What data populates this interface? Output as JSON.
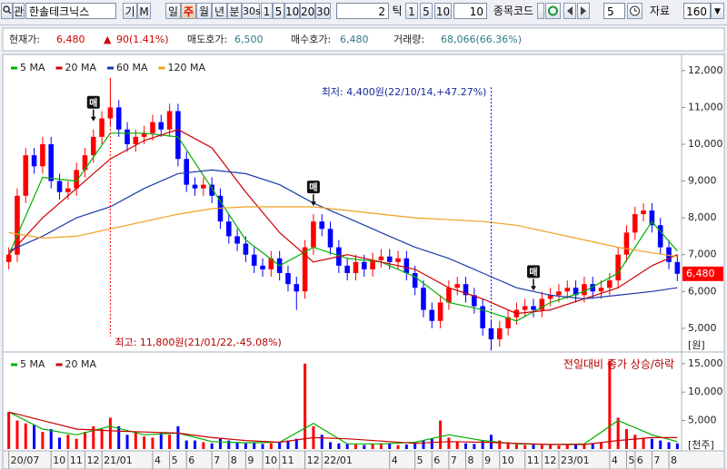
{
  "toolbar": {
    "watch": "관",
    "stock_name": "한솔테크닉스",
    "chart_types": [
      "기",
      "M"
    ],
    "periods": [
      "일",
      "주",
      "월",
      "년",
      "분",
      "30s",
      "1",
      "5",
      "10",
      "20",
      "30"
    ],
    "tick_count": "2",
    "tick_unit": "틱",
    "tick_buttons": [
      "1",
      "5",
      "10"
    ],
    "tick_input": "10",
    "code_label": "종목코드",
    "step": "5",
    "data_label": "자료",
    "data_count": "160"
  },
  "info": {
    "price_label": "현재가:",
    "price": "6,480",
    "change_sign": "▲",
    "change": "90(1.41%)",
    "ask_label": "매도호가:",
    "ask": "6,500",
    "bid_label": "매수호가:",
    "bid": "6,480",
    "volume_label": "거래량:",
    "volume": "68,066(66.36%)"
  },
  "chart_data": [
    {
      "type": "candlestick",
      "open": [
        6800,
        7000,
        8600,
        9700,
        9400,
        10000,
        9000,
        8700,
        8800,
        9300,
        9700,
        10200,
        10700,
        11000,
        10400,
        10000,
        10200,
        10300,
        10600,
        10400,
        10900,
        9600,
        8900,
        8800,
        8900,
        8600,
        7900,
        7500,
        7300,
        7000,
        6700,
        6600,
        6900,
        6500,
        6200,
        6000,
        7200,
        7900,
        7700,
        7200,
        6700,
        6500,
        6800,
        6600,
        6850,
        6950,
        6800,
        6900,
        6500,
        6100,
        5500,
        5200,
        5700,
        6100,
        6200,
        5900,
        5600,
        5000,
        4700,
        5000,
        5300,
        5500,
        5600,
        5500,
        5800,
        5900,
        6000,
        6100,
        5900,
        6200,
        6000,
        6100,
        6300,
        7000,
        7600,
        8100,
        8200,
        7800,
        7200,
        6800
      ],
      "high": [
        7200,
        8800,
        9900,
        9900,
        10200,
        10200,
        9200,
        9000,
        9500,
        9900,
        10400,
        10900,
        11800,
        11200,
        10600,
        10400,
        10500,
        10800,
        10800,
        11100,
        11100,
        9800,
        9100,
        9100,
        9100,
        8800,
        8100,
        7700,
        7500,
        7200,
        6900,
        7100,
        7100,
        6700,
        6400,
        7400,
        8100,
        8100,
        7900,
        7400,
        6900,
        7000,
        7000,
        7050,
        7150,
        7150,
        7100,
        7100,
        6700,
        6300,
        5700,
        5900,
        6300,
        6400,
        6400,
        6100,
        5800,
        5200,
        5200,
        5500,
        5700,
        5800,
        5800,
        6000,
        6100,
        6200,
        6300,
        6300,
        6400,
        6400,
        6300,
        6500,
        7200,
        7800,
        8300,
        8400,
        8400,
        8000,
        7400,
        7000
      ],
      "low": [
        6600,
        6800,
        8400,
        9200,
        9200,
        8800,
        8500,
        8500,
        8600,
        9100,
        9500,
        10000,
        10500,
        10200,
        9800,
        9800,
        10000,
        10100,
        10200,
        10200,
        9400,
        8700,
        8600,
        8600,
        8400,
        7700,
        7300,
        7100,
        6800,
        6500,
        6400,
        6400,
        6300,
        6000,
        5500,
        5800,
        7000,
        7500,
        7000,
        6500,
        6300,
        6300,
        6400,
        6400,
        6650,
        6600,
        6600,
        6300,
        5900,
        5300,
        5000,
        5000,
        5500,
        5900,
        5700,
        5400,
        4800,
        4400,
        4500,
        4800,
        5100,
        5300,
        5300,
        5300,
        5600,
        5700,
        5800,
        5700,
        5700,
        5800,
        5800,
        5900,
        6100,
        6800,
        7400,
        7900,
        7600,
        7000,
        6600,
        6280
      ],
      "close": [
        7000,
        8600,
        9700,
        9400,
        10000,
        9000,
        8700,
        8800,
        9300,
        9700,
        10200,
        10700,
        11000,
        10400,
        10000,
        10200,
        10300,
        10600,
        10400,
        10900,
        9600,
        8900,
        8800,
        8900,
        8600,
        7900,
        7500,
        7300,
        7000,
        6700,
        6600,
        6900,
        6500,
        6200,
        6000,
        7200,
        7900,
        7700,
        7200,
        6700,
        6500,
        6800,
        6600,
        6850,
        6950,
        6800,
        6900,
        6500,
        6100,
        5500,
        5200,
        5700,
        6100,
        6200,
        5900,
        5600,
        5000,
        4700,
        5000,
        5300,
        5500,
        5600,
        5500,
        5800,
        5900,
        6000,
        6100,
        5900,
        6200,
        6000,
        6100,
        6300,
        7000,
        7600,
        8100,
        8200,
        7800,
        7200,
        6800,
        6480
      ],
      "up_color": "#ff0000",
      "down_color": "#0000ff",
      "series": [
        {
          "name": "5 MA",
          "color": "#00b000",
          "x": [
            0,
            4,
            8,
            12,
            16,
            20,
            24,
            28,
            32,
            36,
            40,
            44,
            48,
            52,
            56,
            60,
            64,
            68,
            72,
            76,
            79
          ],
          "values": [
            7000,
            9100,
            9000,
            10300,
            10300,
            10200,
            8800,
            7400,
            6700,
            7200,
            6900,
            6800,
            6400,
            5700,
            5500,
            5200,
            5700,
            6000,
            6500,
            7900,
            7100
          ]
        },
        {
          "name": "20 MA",
          "color": "#cc0000",
          "x": [
            0,
            4,
            8,
            12,
            16,
            20,
            24,
            28,
            32,
            36,
            40,
            44,
            48,
            52,
            56,
            60,
            64,
            68,
            72,
            76,
            79
          ],
          "values": [
            7000,
            8000,
            8800,
            9600,
            10100,
            10400,
            9900,
            8700,
            7600,
            6800,
            7000,
            6800,
            6600,
            6100,
            5800,
            5400,
            5500,
            5800,
            6100,
            6700,
            7000
          ]
        },
        {
          "name": "60 MA",
          "color": "#1a3aa8",
          "x": [
            0,
            4,
            8,
            12,
            16,
            20,
            24,
            28,
            32,
            36,
            40,
            44,
            48,
            52,
            56,
            60,
            64,
            68,
            72,
            76,
            79
          ],
          "values": [
            7100,
            7500,
            8000,
            8300,
            8800,
            9200,
            9300,
            9200,
            8900,
            8400,
            8000,
            7600,
            7200,
            6900,
            6500,
            6100,
            5900,
            5800,
            5900,
            6000,
            6100
          ]
        },
        {
          "name": "120 MA",
          "color": "#f0a020",
          "x": [
            0,
            4,
            8,
            12,
            16,
            20,
            24,
            28,
            32,
            36,
            40,
            44,
            48,
            52,
            56,
            60,
            64,
            68,
            72,
            76,
            79
          ],
          "values": [
            7600,
            7450,
            7500,
            7700,
            7900,
            8100,
            8250,
            8300,
            8300,
            8300,
            8200,
            8100,
            8000,
            7950,
            7900,
            7800,
            7600,
            7400,
            7200,
            7050,
            6950
          ]
        }
      ],
      "xlim": [
        -0.5,
        79.5
      ],
      "ylim": [
        4430,
        12390
      ],
      "yticks": [
        {
          "value": 5000,
          "label": "5,000"
        },
        {
          "value": 6000,
          "label": "6,000"
        },
        {
          "value": 7000,
          "label": "7,000"
        },
        {
          "value": 8000,
          "label": "8,000"
        },
        {
          "value": 9000,
          "label": "9,000"
        },
        {
          "value": 10000,
          "label": "10,000"
        },
        {
          "value": 11000,
          "label": "11,000"
        },
        {
          "value": 12000,
          "label": "12,000"
        }
      ],
      "y_unit": "[원]",
      "current_price": {
        "value": 6480,
        "label": "6,480"
      },
      "annotations": [
        {
          "text": "최고: 11,800원(21/01/22,-45.08%)",
          "x": 12,
          "y": 11800
        },
        {
          "text": "최저: 4,400원(22/10/14,+47.27%)",
          "x": 57,
          "y": 4400
        }
      ],
      "signals": {
        "label": "매",
        "x": [
          10,
          36,
          62
        ]
      }
    },
    {
      "type": "bar",
      "values": [
        6500,
        5000,
        4500,
        4200,
        3000,
        3500,
        2000,
        2500,
        1800,
        3000,
        4000,
        3500,
        5500,
        4000,
        2500,
        3000,
        2200,
        2000,
        2800,
        2500,
        4000,
        1500,
        1500,
        1200,
        1000,
        1800,
        1500,
        1200,
        1000,
        1200,
        900,
        1000,
        1300,
        1500,
        1800,
        15000,
        4000,
        2500,
        1200,
        1000,
        900,
        800,
        700,
        900,
        1000,
        900,
        700,
        800,
        1000,
        1500,
        1800,
        5000,
        2000,
        1200,
        1000,
        900,
        1500,
        2500,
        1500,
        1200,
        800,
        700,
        900,
        700,
        800,
        600,
        700,
        900,
        800,
        1000,
        1200,
        15500,
        5500,
        3500,
        2500,
        2000,
        1800,
        1500,
        1200,
        1000
      ],
      "series": [
        {
          "name": "5 MA",
          "color": "#00b000",
          "x": [
            0,
            4,
            8,
            12,
            16,
            20,
            24,
            28,
            32,
            36,
            40,
            44,
            48,
            52,
            56,
            60,
            64,
            68,
            72,
            76,
            79
          ],
          "values": [
            6500,
            3500,
            2500,
            4000,
            2500,
            2800,
            1300,
            1100,
            1200,
            4500,
            900,
            900,
            1200,
            2500,
            1500,
            900,
            800,
            900,
            5000,
            2500,
            1300
          ]
        },
        {
          "name": "20 MA",
          "color": "#cc0000",
          "x": [
            0,
            4,
            8,
            12,
            16,
            20,
            24,
            28,
            32,
            36,
            40,
            44,
            48,
            52,
            56,
            60,
            64,
            68,
            72,
            76,
            79
          ],
          "values": [
            6500,
            5000,
            3500,
            3200,
            3000,
            2800,
            2000,
            1500,
            1200,
            2000,
            1800,
            1400,
            1000,
            1300,
            1200,
            1000,
            800,
            800,
            1500,
            2000,
            2000
          ]
        }
      ],
      "note": "전일대비 종가 상승/하락",
      "xlim": [
        -0.5,
        79.5
      ],
      "ylim": [
        0,
        16400
      ],
      "yticks": [
        {
          "value": 5000,
          "label": "5,000"
        },
        {
          "value": 10000,
          "label": "10,000"
        },
        {
          "value": 15000,
          "label": "15,000"
        }
      ],
      "y_unit": "[천주]",
      "xticks": [
        {
          "value": 0,
          "label": "20/07"
        },
        {
          "value": 5,
          "label": "10"
        },
        {
          "value": 7,
          "label": "11"
        },
        {
          "value": 9,
          "label": "12"
        },
        {
          "value": 11,
          "label": "21/01"
        },
        {
          "value": 17,
          "label": "4"
        },
        {
          "value": 19,
          "label": "5"
        },
        {
          "value": 21,
          "label": "6"
        },
        {
          "value": 24,
          "label": "7"
        },
        {
          "value": 26,
          "label": "8"
        },
        {
          "value": 28,
          "label": "9"
        },
        {
          "value": 30,
          "label": "10"
        },
        {
          "value": 32,
          "label": "11"
        },
        {
          "value": 35,
          "label": "12"
        },
        {
          "value": 37,
          "label": "22/01"
        },
        {
          "value": 45,
          "label": "4"
        },
        {
          "value": 48,
          "label": "5"
        },
        {
          "value": 50,
          "label": "6"
        },
        {
          "value": 52,
          "label": "7"
        },
        {
          "value": 54,
          "label": "8"
        },
        {
          "value": 56,
          "label": "9"
        },
        {
          "value": 58,
          "label": "10"
        },
        {
          "value": 61,
          "label": "11"
        },
        {
          "value": 63,
          "label": "12"
        },
        {
          "value": 65,
          "label": "23/01"
        },
        {
          "value": 71,
          "label": "4"
        },
        {
          "value": 73,
          "label": "5"
        },
        {
          "value": 74,
          "label": "6"
        },
        {
          "value": 76,
          "label": "7"
        },
        {
          "value": 78,
          "label": "8"
        }
      ]
    }
  ]
}
